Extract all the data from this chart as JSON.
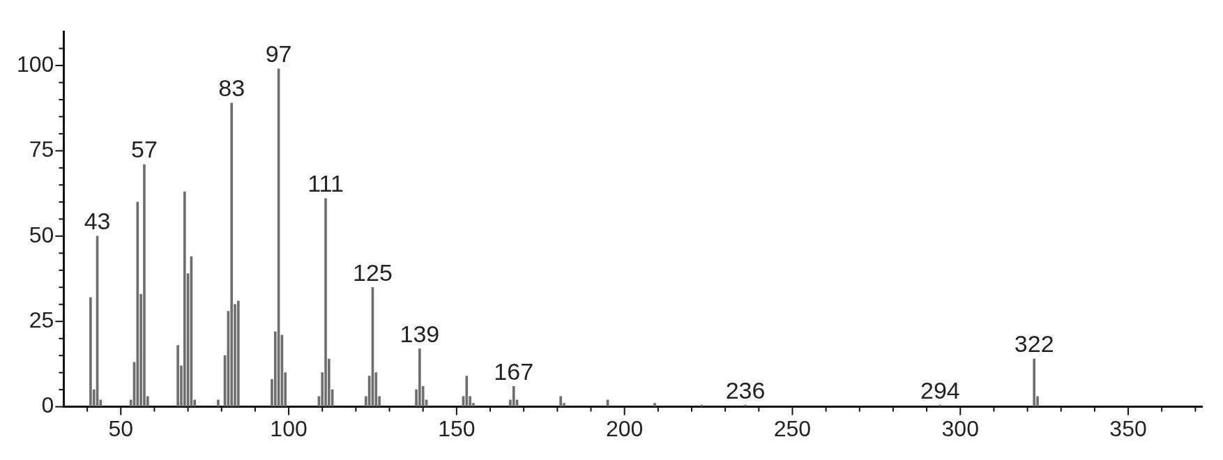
{
  "chart_data": {
    "type": "bar",
    "x": [
      41,
      42,
      43,
      44,
      53,
      54,
      55,
      56,
      57,
      58,
      67,
      68,
      69,
      70,
      71,
      72,
      79,
      81,
      82,
      83,
      84,
      85,
      95,
      96,
      97,
      98,
      99,
      109,
      110,
      111,
      112,
      113,
      123,
      124,
      125,
      126,
      127,
      138,
      139,
      140,
      141,
      152,
      153,
      154,
      155,
      166,
      167,
      168,
      181,
      182,
      195,
      209,
      223,
      236,
      294,
      322,
      323
    ],
    "values": [
      32,
      5,
      50,
      2,
      2,
      13,
      60,
      33,
      71,
      3,
      18,
      12,
      63,
      39,
      44,
      2,
      2,
      15,
      28,
      89,
      30,
      31,
      8,
      22,
      99,
      21,
      10,
      3,
      10,
      61,
      14,
      5,
      3,
      9,
      35,
      10,
      3,
      5,
      17,
      6,
      2,
      3,
      9,
      3,
      1,
      2,
      6,
      2,
      3,
      1,
      2,
      1,
      0.5,
      0.5,
      0.5,
      14,
      3
    ],
    "color": "#6e6e6e",
    "xlim": [
      33,
      372
    ],
    "ylim": [
      0,
      110
    ],
    "xticks": [
      {
        "value": 40,
        "label": null
      },
      50,
      {
        "value": 60,
        "label": null
      },
      {
        "value": 70,
        "label": null
      },
      {
        "value": 80,
        "label": null
      },
      {
        "value": 90,
        "label": null
      },
      100,
      {
        "value": 110,
        "label": null
      },
      {
        "value": 120,
        "label": null
      },
      {
        "value": 130,
        "label": null
      },
      {
        "value": 140,
        "label": null
      },
      150,
      {
        "value": 160,
        "label": null
      },
      {
        "value": 170,
        "label": null
      },
      {
        "value": 180,
        "label": null
      },
      {
        "value": 190,
        "label": null
      },
      200,
      {
        "value": 210,
        "label": null
      },
      {
        "value": 220,
        "label": null
      },
      {
        "value": 230,
        "label": null
      },
      {
        "value": 240,
        "label": null
      },
      250,
      {
        "value": 260,
        "label": null
      },
      {
        "value": 270,
        "label": null
      },
      {
        "value": 280,
        "label": null
      },
      {
        "value": 290,
        "label": null
      },
      300,
      {
        "value": 310,
        "label": null
      },
      {
        "value": 320,
        "label": null
      },
      {
        "value": 330,
        "label": null
      },
      {
        "value": 340,
        "label": null
      },
      350,
      {
        "value": 360,
        "label": null
      },
      {
        "value": 370,
        "label": null
      }
    ],
    "yticks": [
      0,
      {
        "value": 5,
        "label": null
      },
      {
        "value": 10,
        "label": null
      },
      {
        "value": 15,
        "label": null
      },
      {
        "value": 20,
        "label": null
      },
      25,
      {
        "value": 30,
        "label": null
      },
      {
        "value": 35,
        "label": null
      },
      {
        "value": 40,
        "label": null
      },
      {
        "value": 45,
        "label": null
      },
      50,
      {
        "value": 55,
        "label": null
      },
      {
        "value": 60,
        "label": null
      },
      {
        "value": 65,
        "label": null
      },
      {
        "value": 70,
        "label": null
      },
      75,
      {
        "value": 80,
        "label": null
      },
      {
        "value": 85,
        "label": null
      },
      {
        "value": 90,
        "label": null
      },
      {
        "value": 95,
        "label": null
      },
      100,
      {
        "value": 105,
        "label": null
      }
    ],
    "grid": false,
    "legend": false,
    "annotations": [
      {
        "text": "43",
        "x": 43,
        "y": 50
      },
      {
        "text": "57",
        "x": 57,
        "y": 71
      },
      {
        "text": "83",
        "x": 83,
        "y": 89
      },
      {
        "text": "97",
        "x": 97,
        "y": 99
      },
      {
        "text": "111",
        "x": 111,
        "y": 61
      },
      {
        "text": "125",
        "x": 125,
        "y": 35
      },
      {
        "text": "139",
        "x": 139,
        "y": 17
      },
      {
        "text": "167",
        "x": 167,
        "y": 6
      },
      {
        "text": "236",
        "x": 236,
        "y": 0.5
      },
      {
        "text": "294",
        "x": 294,
        "y": 0.5
      },
      {
        "text": "322",
        "x": 322,
        "y": 14
      }
    ]
  }
}
